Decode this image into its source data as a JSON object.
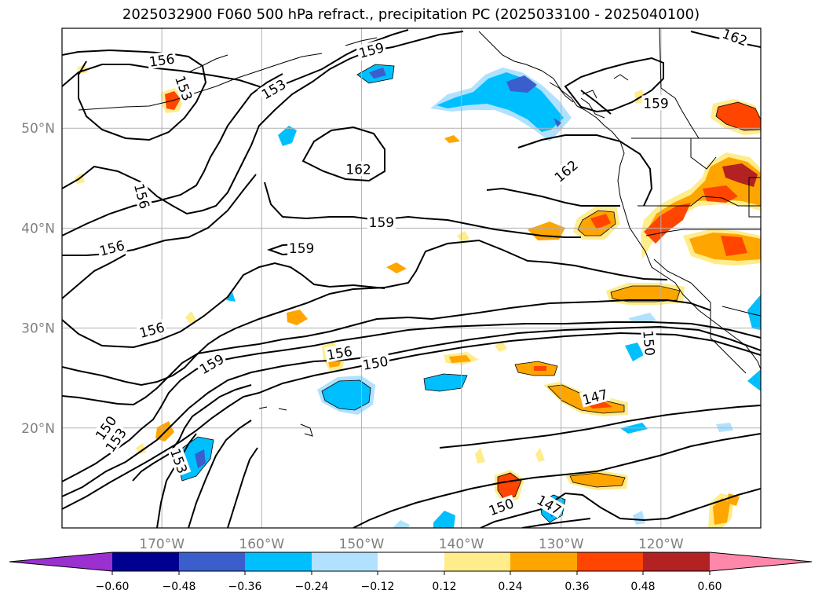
{
  "title": "2025032900 F060 500 hPa refract., precipitation PC (2025033100 - 2025040100)",
  "colors": {
    "grid": "#b0b0b0",
    "contour": "#000000",
    "tick_text": "#808080"
  },
  "map": {
    "lon_range": [
      -180,
      -110
    ],
    "lat_range": [
      10,
      60
    ],
    "lon_ticks": [
      {
        "value": -170,
        "label": "170°W"
      },
      {
        "value": -160,
        "label": "160°W"
      },
      {
        "value": -150,
        "label": "150°W"
      },
      {
        "value": -140,
        "label": "140°W"
      },
      {
        "value": -130,
        "label": "130°W"
      },
      {
        "value": -120,
        "label": "120°W"
      }
    ],
    "lat_ticks": [
      {
        "value": 20,
        "label": "20°N"
      },
      {
        "value": 30,
        "label": "30°N"
      },
      {
        "value": 40,
        "label": "40°N"
      },
      {
        "value": 50,
        "label": "50°N"
      }
    ],
    "contour_labels": [
      {
        "text": "156",
        "lon": -170.0,
        "lat": 56.8,
        "angle": -8
      },
      {
        "text": "153",
        "lon": -167.8,
        "lat": 54.0,
        "angle": 70
      },
      {
        "text": "153",
        "lon": -158.8,
        "lat": 53.9,
        "angle": -30
      },
      {
        "text": "159",
        "lon": -149.0,
        "lat": 57.8,
        "angle": -15
      },
      {
        "text": "162",
        "lon": -112.6,
        "lat": 59.1,
        "angle": 20
      },
      {
        "text": "159",
        "lon": -120.5,
        "lat": 52.5,
        "angle": 0
      },
      {
        "text": "162",
        "lon": -150.3,
        "lat": 45.9,
        "angle": 0
      },
      {
        "text": "162",
        "lon": -129.5,
        "lat": 45.7,
        "angle": -40
      },
      {
        "text": "156",
        "lon": -172.0,
        "lat": 43.2,
        "angle": 75
      },
      {
        "text": "159",
        "lon": -148.0,
        "lat": 40.6,
        "angle": 0
      },
      {
        "text": "156",
        "lon": -175.0,
        "lat": 38.0,
        "angle": -15
      },
      {
        "text": "159",
        "lon": -156.0,
        "lat": 38.0,
        "angle": 0
      },
      {
        "text": "156",
        "lon": -171.0,
        "lat": 29.8,
        "angle": -15
      },
      {
        "text": "159",
        "lon": -165.0,
        "lat": 26.4,
        "angle": -30
      },
      {
        "text": "156",
        "lon": -152.2,
        "lat": 27.5,
        "angle": -10
      },
      {
        "text": "150",
        "lon": -148.6,
        "lat": 26.5,
        "angle": -10
      },
      {
        "text": "150",
        "lon": -121.2,
        "lat": 28.5,
        "angle": 85
      },
      {
        "text": "147",
        "lon": -126.6,
        "lat": 23.1,
        "angle": -15
      },
      {
        "text": "150",
        "lon": -175.6,
        "lat": 20.0,
        "angle": -55
      },
      {
        "text": "153",
        "lon": -174.6,
        "lat": 18.8,
        "angle": -55
      },
      {
        "text": "153",
        "lon": -168.3,
        "lat": 16.7,
        "angle": 70
      },
      {
        "text": "147",
        "lon": -131.2,
        "lat": 12.3,
        "angle": 30
      },
      {
        "text": "150",
        "lon": -136.0,
        "lat": 12.1,
        "angle": -20
      }
    ]
  },
  "colorbar": {
    "colors": [
      "#9b30d0",
      "#000090",
      "#3a5fcd",
      "#00bfff",
      "#b0e2ff",
      "#ffffff",
      "#ffec8b",
      "#ffa500",
      "#ff4500",
      "#b22222",
      "#ff88aa"
    ],
    "tick_labels": [
      "−0.60",
      "−0.48",
      "−0.36",
      "−0.24",
      "−0.12",
      "0.12",
      "0.24",
      "0.36",
      "0.48",
      "0.60"
    ]
  }
}
